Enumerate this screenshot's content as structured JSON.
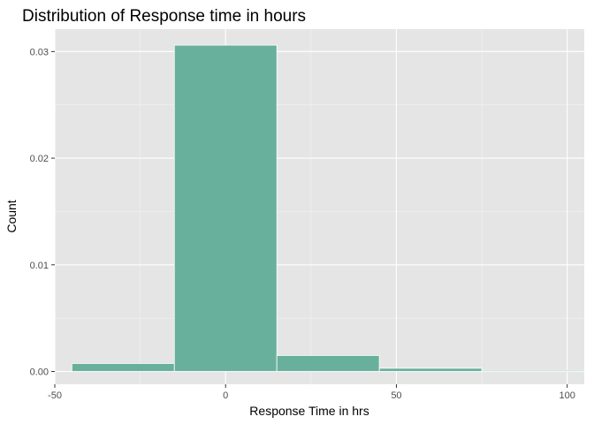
{
  "chart_data": {
    "type": "bar",
    "subtype": "histogram",
    "title": "Distribution of Response time in hours",
    "xlabel": "Response Time in hrs",
    "ylabel": "Count",
    "bins": [
      {
        "start": -45,
        "end": -15,
        "value": 0.00075
      },
      {
        "start": -15,
        "end": 15,
        "value": 0.0306
      },
      {
        "start": 15,
        "end": 45,
        "value": 0.0015
      },
      {
        "start": 45,
        "end": 75,
        "value": 0.0003
      },
      {
        "start": 75,
        "end": 105,
        "value": 0.0001
      }
    ],
    "xlim": [
      -50,
      105
    ],
    "ylim": [
      -0.0012,
      0.0321
    ],
    "x_ticks": [
      -50,
      0,
      50,
      100
    ],
    "x_tick_labels": [
      "-50",
      "0",
      "50",
      "100"
    ],
    "y_ticks": [
      0,
      0.01,
      0.02,
      0.03
    ],
    "y_tick_labels": [
      "0.00",
      "0.01",
      "0.02",
      "0.03"
    ],
    "grid": true,
    "legend": "none",
    "colors": {
      "panel_background": "#E5E5E5",
      "grid_major": "#FFFFFF",
      "grid_minor": "#F2F2F2",
      "bar_fill": "#69B09C",
      "bar_outline": "#FFFFFF"
    }
  }
}
